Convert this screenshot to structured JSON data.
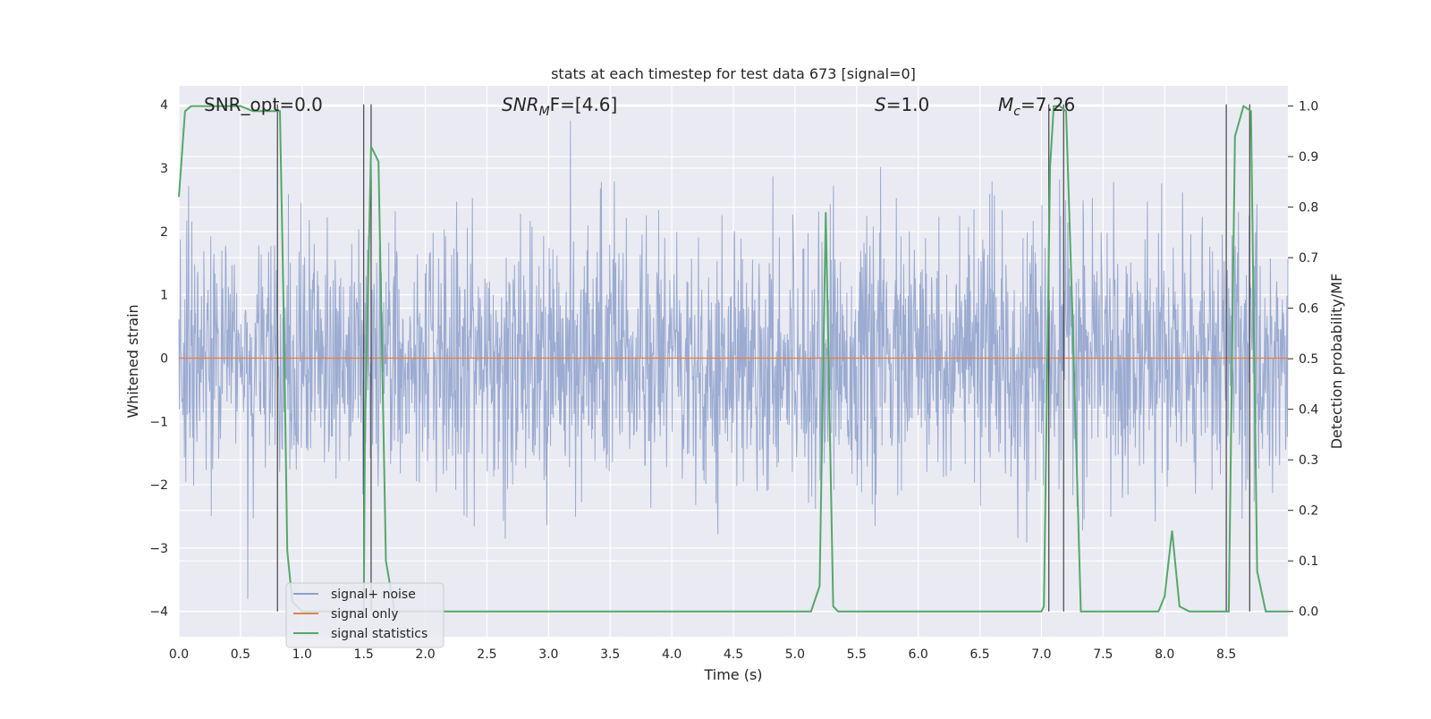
{
  "chart_data": {
    "type": "line",
    "title": "stats at each timestep for test data 673 [signal=0]",
    "xlabel": "Time (s)",
    "ylabel_left": "Whitened strain",
    "ylabel_right": "Detection probability/MF",
    "xlim": [
      0.0,
      9.0
    ],
    "ylim_left": [
      -4.4,
      4.3
    ],
    "ylim_right": [
      -0.05,
      1.04
    ],
    "x_ticks": [
      0.0,
      0.5,
      1.0,
      1.5,
      2.0,
      2.5,
      3.0,
      3.5,
      4.0,
      4.5,
      5.0,
      5.5,
      6.0,
      6.5,
      7.0,
      7.5,
      8.0,
      8.5
    ],
    "x_tick_labels": [
      "0.0",
      "0.5",
      "1.0",
      "1.5",
      "2.0",
      "2.5",
      "3.0",
      "3.5",
      "4.0",
      "4.5",
      "5.0",
      "5.5",
      "6.0",
      "6.5",
      "7.0",
      "7.5",
      "8.0",
      "8.5"
    ],
    "y_left_ticks": [
      4,
      3,
      2,
      1,
      0,
      -1,
      -2,
      -3,
      -4
    ],
    "y_left_tick_labels": [
      "4",
      "3",
      "2",
      "1",
      "0",
      "−1",
      "−2",
      "−3",
      "−4"
    ],
    "y_right_ticks": [
      1.0,
      0.9,
      0.8,
      0.7,
      0.6,
      0.5,
      0.4,
      0.3,
      0.2,
      0.1,
      0.0
    ],
    "y_right_tick_labels": [
      "1.0",
      "0.9",
      "0.8",
      "0.7",
      "0.6",
      "0.5",
      "0.4",
      "0.3",
      "0.2",
      "0.1",
      "0.0"
    ],
    "grid": true,
    "legend_position": "lower-left",
    "annotations": {
      "snr_opt": "SNR_opt=0.0",
      "snr_mf_main": "SNR",
      "snr_mf_sub": "M",
      "snr_mf_rest": "F=[4.6]",
      "s_main": "S",
      "s_rest": "=1.0",
      "mc_main": "M",
      "mc_sub": "c",
      "mc_rest": "=7.26"
    },
    "series": [
      {
        "name": "signal+ noise",
        "color": "#8da0cb",
        "description_axis": "left",
        "noise_std": 1.0,
        "x_range": [
          0.0,
          9.0
        ]
      },
      {
        "name": "signal only",
        "color": "#dd8452",
        "axis": "left",
        "x": [
          0.0,
          9.0
        ],
        "y": [
          0.0,
          0.0
        ]
      },
      {
        "name": "signal statistics",
        "color": "#55a868",
        "axis": "right",
        "x": [
          0.0,
          0.05,
          0.1,
          0.15,
          0.2,
          0.3,
          0.4,
          0.5,
          0.6,
          0.7,
          0.8,
          0.82,
          0.85,
          0.88,
          0.92,
          1.0,
          1.5,
          1.51,
          1.56,
          1.62,
          1.68,
          1.75,
          2.0,
          3.0,
          4.0,
          5.0,
          5.13,
          5.2,
          5.25,
          5.31,
          5.35,
          6.0,
          7.0,
          7.02,
          7.07,
          7.1,
          7.15,
          7.2,
          7.25,
          7.32,
          7.5,
          7.95,
          8.0,
          8.06,
          8.12,
          8.2,
          8.5,
          8.52,
          8.57,
          8.64,
          8.7,
          8.75,
          8.82,
          8.9,
          9.0
        ],
        "y": [
          0.82,
          0.99,
          1.0,
          1.0,
          1.0,
          1.0,
          1.0,
          1.0,
          0.99,
          0.99,
          0.99,
          0.99,
          0.6,
          0.12,
          0.02,
          0.0,
          0.0,
          0.35,
          0.92,
          0.89,
          0.1,
          0.0,
          0.0,
          0.0,
          0.0,
          0.0,
          0.0,
          0.05,
          0.79,
          0.01,
          0.0,
          0.0,
          0.0,
          0.01,
          0.88,
          1.0,
          1.0,
          0.99,
          0.6,
          0.0,
          0.0,
          0.0,
          0.03,
          0.16,
          0.01,
          0.0,
          0.0,
          0.0,
          0.94,
          1.0,
          0.99,
          0.08,
          0.0,
          0.0,
          0.0
        ]
      }
    ],
    "vertical_markers_x": [
      0.8,
      1.5,
      1.56,
      7.06,
      7.18,
      8.5,
      8.69
    ]
  },
  "legend": {
    "items": [
      "signal+ noise",
      "signal only",
      "signal statistics"
    ]
  }
}
